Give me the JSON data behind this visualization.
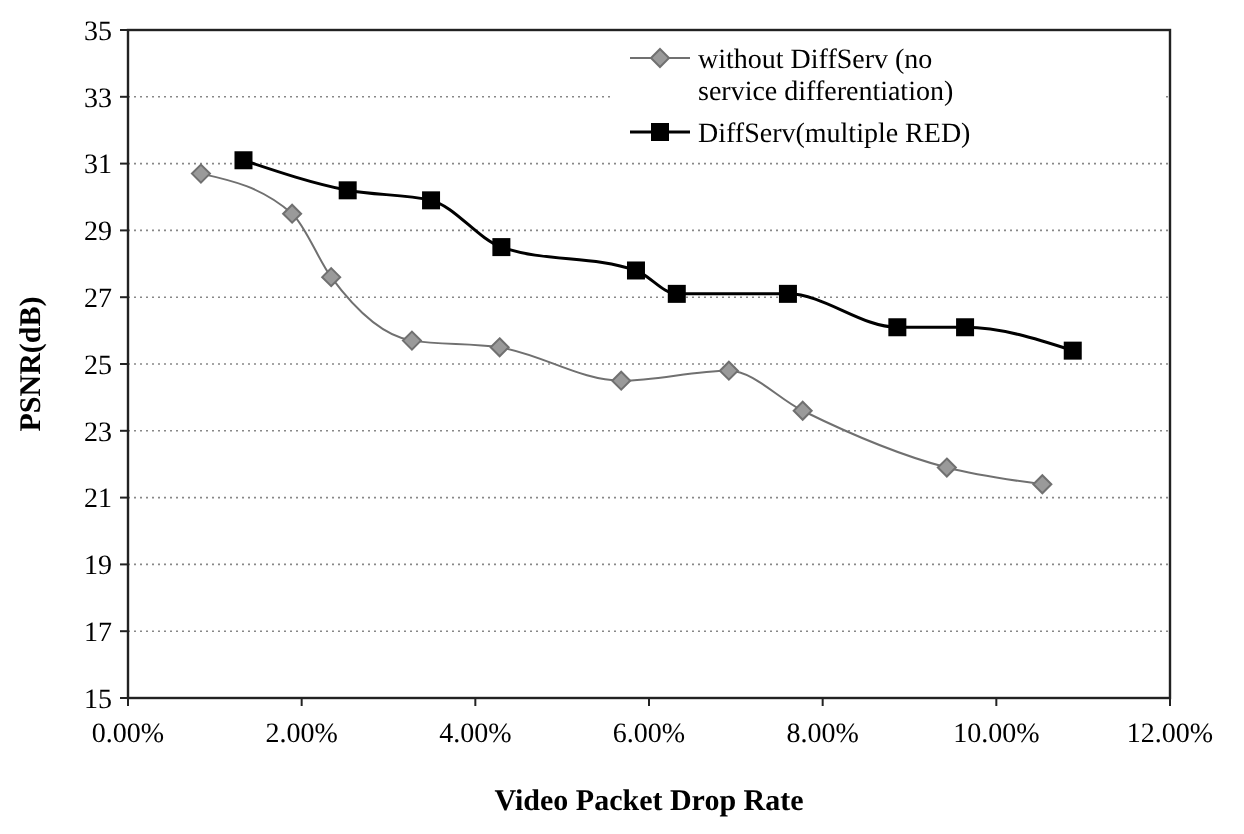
{
  "chart_data": {
    "type": "line",
    "xlabel": "Video Packet Drop Rate",
    "ylabel": "PSNR(dB)",
    "xlim": [
      0,
      0.12
    ],
    "xticks": [
      {
        "value": 0,
        "label": "0.00%"
      },
      {
        "value": 0.02,
        "label": "2.00%"
      },
      {
        "value": 0.04,
        "label": "4.00%"
      },
      {
        "value": 0.06,
        "label": "6.00%"
      },
      {
        "value": 0.08,
        "label": "8.00%"
      },
      {
        "value": 0.1,
        "label": "10.00%"
      },
      {
        "value": 0.12,
        "label": "12.00%"
      }
    ],
    "ylim": [
      15,
      35
    ],
    "yticks": [
      15,
      17,
      19,
      21,
      23,
      25,
      27,
      29,
      31,
      33,
      35
    ],
    "grid": "y",
    "legend": "top right",
    "line_style": "solid",
    "series": [
      {
        "name": "without DiffServ (no service differentiation)",
        "color": "#707070",
        "marker": "diamond",
        "x": [
          0.0084,
          0.0189,
          0.0234,
          0.0327,
          0.0428,
          0.0568,
          0.0692,
          0.0777,
          0.0943,
          0.1053
        ],
        "values": [
          30.7,
          29.5,
          27.6,
          25.7,
          25.5,
          24.5,
          24.8,
          23.6,
          21.9,
          21.4
        ]
      },
      {
        "name": "DiffServ(multiple RED)",
        "color": "#000000",
        "marker": "square",
        "x": [
          0.0133,
          0.0253,
          0.0349,
          0.043,
          0.0585,
          0.0632,
          0.076,
          0.0886,
          0.0964,
          0.1088
        ],
        "values": [
          31.1,
          30.2,
          29.9,
          28.5,
          27.8,
          27.1,
          27.1,
          26.1,
          26.1,
          25.4
        ]
      }
    ]
  }
}
